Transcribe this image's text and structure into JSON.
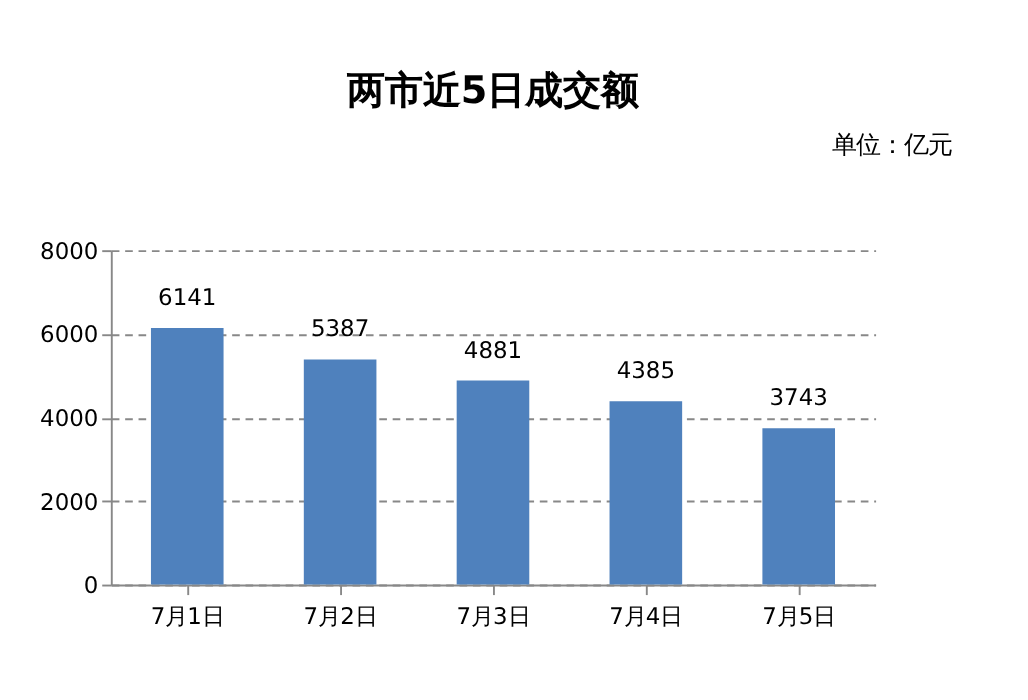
{
  "chart_data": {
    "type": "bar",
    "title": "两市近5日成交额",
    "annotations": [
      "单位：亿元"
    ],
    "categories": [
      "7月1日",
      "7月2日",
      "7月3日",
      "7月4日",
      "7月5日"
    ],
    "values": [
      6141,
      5387,
      4881,
      4385,
      3743
    ],
    "color": "#4f81bd",
    "ylim": [
      0,
      8000
    ],
    "yticks": [
      0,
      2000,
      4000,
      6000,
      8000
    ],
    "grid": "y",
    "data_labels": true
  }
}
